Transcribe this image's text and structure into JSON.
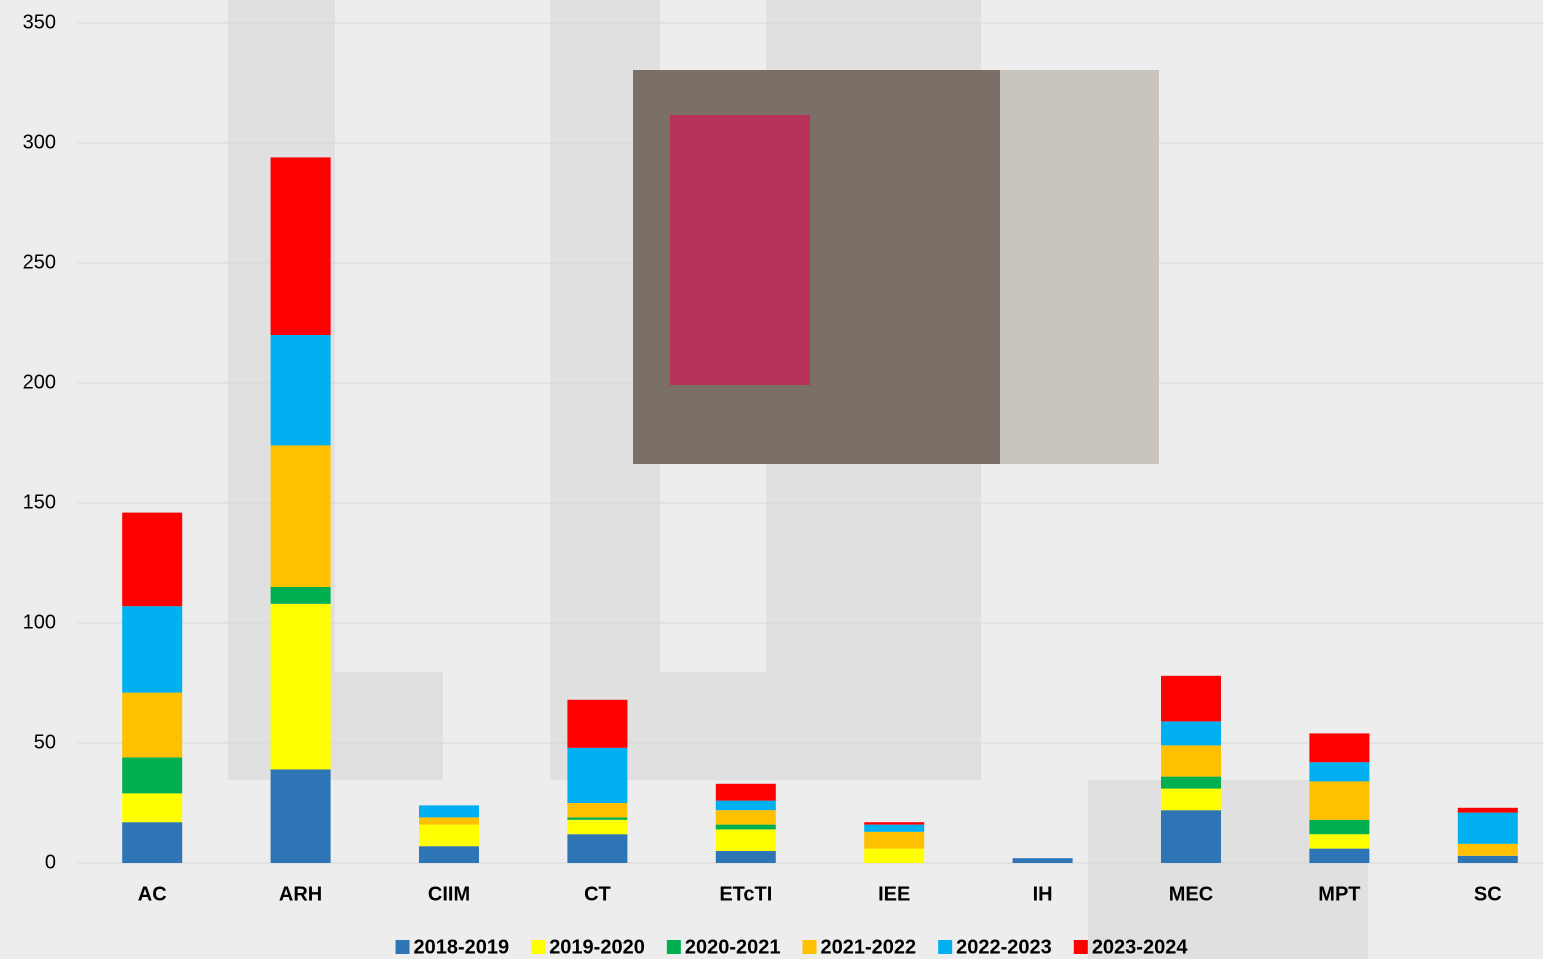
{
  "chart_data": {
    "type": "stacked_bar",
    "categories": [
      "AC",
      "ARH",
      "CIIM",
      "CT",
      "ETcTI",
      "IEE",
      "IH",
      "MEC",
      "MPT",
      "SC"
    ],
    "series": [
      {
        "name": "2018-2019",
        "color": "#2e75b6",
        "values": [
          17,
          39,
          7,
          12,
          5,
          0,
          2,
          22,
          6,
          3
        ]
      },
      {
        "name": "2019-2020",
        "color": "#ffff00",
        "values": [
          12,
          69,
          9,
          6,
          9,
          6,
          0,
          9,
          6,
          0
        ]
      },
      {
        "name": "2020-2021",
        "color": "#00b050",
        "values": [
          15,
          7,
          0,
          1,
          2,
          0,
          0,
          5,
          6,
          0
        ]
      },
      {
        "name": "2021-2022",
        "color": "#ffc000",
        "values": [
          27,
          59,
          3,
          6,
          6,
          7,
          0,
          13,
          16,
          5
        ]
      },
      {
        "name": "2022-2023",
        "color": "#00b0f0",
        "values": [
          36,
          46,
          5,
          23,
          4,
          3,
          0,
          10,
          8,
          13
        ]
      },
      {
        "name": "2023-2024",
        "color": "#ff0000",
        "values": [
          39,
          74,
          0,
          20,
          7,
          1,
          0,
          19,
          12,
          2
        ]
      }
    ],
    "ylim": [
      0,
      350
    ],
    "yticks": [
      0,
      50,
      100,
      150,
      200,
      250,
      300,
      350
    ],
    "grid": true,
    "legend": "bottom"
  }
}
